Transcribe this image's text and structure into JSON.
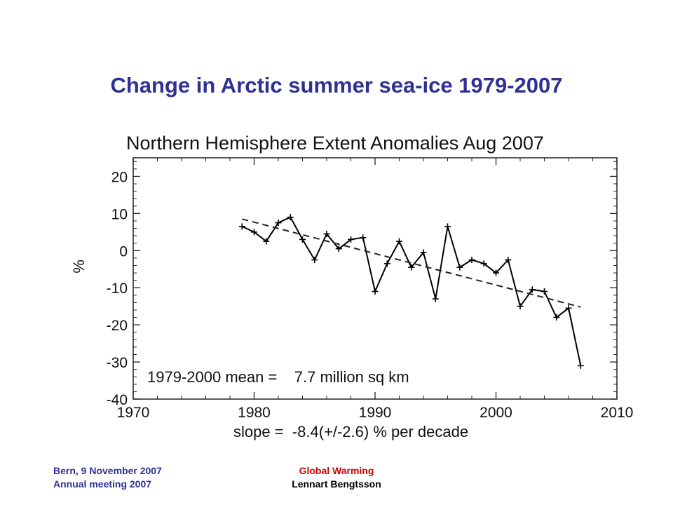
{
  "slide": {
    "title": "Change in Arctic summer sea-ice 1979-2007"
  },
  "footer": {
    "left_line1": "Bern, 9 November  2007",
    "left_line2": "Annual  meeting  2007",
    "center_line1": "Global  Warming",
    "center_line2": "Lennart  Bengtsson"
  },
  "colors": {
    "title": "#2e3192",
    "footer_red": "#cc0000",
    "data_line": "#000000"
  },
  "chart_data": {
    "type": "line",
    "title": "Northern Hemisphere Extent Anomalies Aug 2007",
    "xlabel": "",
    "ylabel": "%",
    "xlim": [
      1970,
      2010
    ],
    "ylim": [
      -40,
      25
    ],
    "xticks": [
      1970,
      1980,
      1990,
      2000,
      2010
    ],
    "yticks": [
      20,
      10,
      0,
      -10,
      -20,
      -30,
      -40
    ],
    "grid": false,
    "annotations": {
      "mean": "1979-2000 mean =    7.7 million sq km",
      "slope": "slope =  -8.4(+/-2.6) % per decade"
    },
    "series": [
      {
        "style": "solid-with-plus-markers",
        "x": [
          1979,
          1980,
          1981,
          1982,
          1983,
          1984,
          1985,
          1986,
          1987,
          1988,
          1989,
          1990,
          1991,
          1992,
          1993,
          1994,
          1995,
          1996,
          1997,
          1998,
          1999,
          2000,
          2001,
          2002,
          2003,
          2004,
          2005,
          2006,
          2007
        ],
        "y": [
          6.5,
          5,
          2.5,
          7.5,
          9,
          3,
          -2.5,
          4.5,
          0.5,
          3,
          3.5,
          -11,
          -3.5,
          2.5,
          -4.5,
          -0.5,
          -13,
          6.5,
          -4.5,
          -2.5,
          -3.5,
          -6,
          -2.5,
          -15,
          -10.5,
          -11,
          -18,
          -15.5,
          -31
        ]
      },
      {
        "style": "dashed-trend",
        "x": [
          1979,
          2007
        ],
        "y": [
          8.5,
          -15.2
        ]
      }
    ]
  }
}
